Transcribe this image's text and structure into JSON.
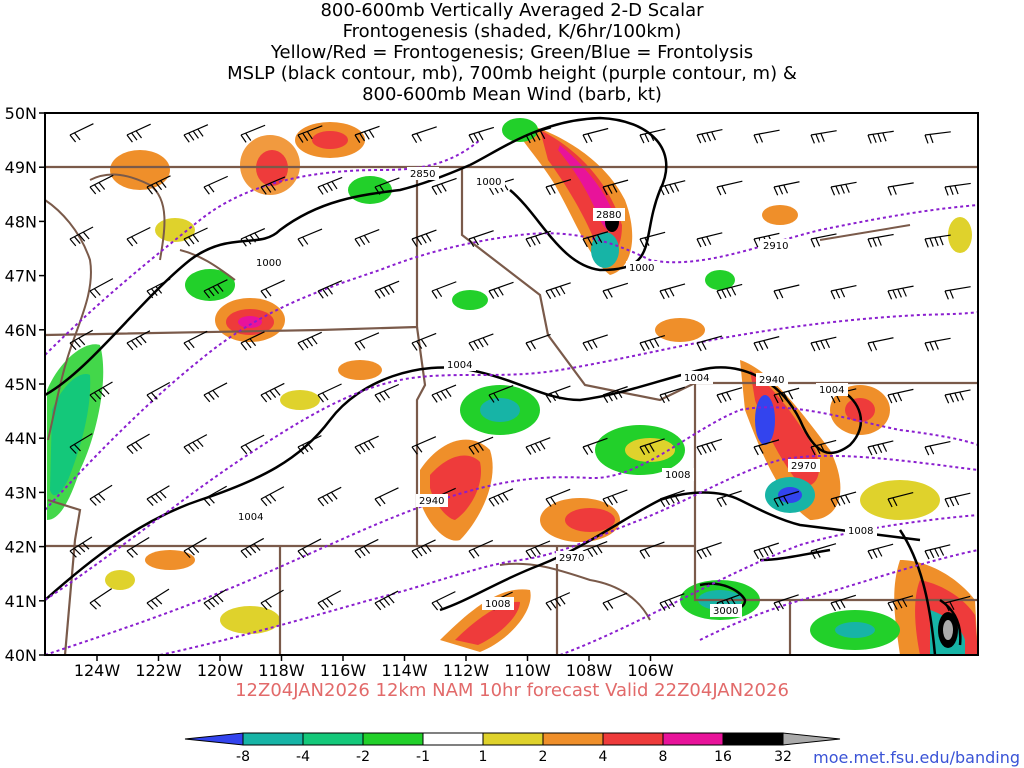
{
  "title_lines": [
    "800-600mb Vertically Averaged 2-D Scalar",
    "Frontogenesis (shaded, K/6hr/100km)",
    "Yellow/Red = Frontogenesis;  Green/Blue = Frontolysis",
    "MSLP (black contour, mb), 700mb height (purple contour, m) &",
    "800-600mb Mean Wind (barb, kt)"
  ],
  "footer": "12Z04JAN2026 12km NAM 10hr forecast Valid 22Z04JAN2026",
  "credit": "moe.met.fsu.edu/banding",
  "lat_labels": [
    "50N",
    "49N",
    "48N",
    "47N",
    "46N",
    "45N",
    "44N",
    "43N",
    "42N",
    "41N",
    "40N"
  ],
  "lon_labels": [
    "124W",
    "122W",
    "120W",
    "118W",
    "116W",
    "114W",
    "112W",
    "110W",
    "108W",
    "106W"
  ],
  "colorbar": {
    "labels": [
      "-8",
      "-4",
      "-2",
      "-1",
      "1",
      "2",
      "4",
      "8",
      "16",
      "32"
    ],
    "colors": [
      "#3344ee",
      "#17b4a6",
      "#14c87a",
      "#22d02a",
      "#ffffff",
      "#dfd22c",
      "#ef8f2a",
      "#ee3b3b",
      "#e8139a",
      "#000000",
      "#aaaaaa"
    ]
  },
  "contour_labels": {
    "mslp": [
      "1000",
      "1000",
      "1000",
      "1004",
      "1004",
      "1004",
      "1004",
      "1008",
      "1008",
      "1008"
    ],
    "height": [
      "2850",
      "2880",
      "2910",
      "2940",
      "2970",
      "2940",
      "2970",
      "3000"
    ]
  },
  "colors": {
    "mslp_contour": "#000000",
    "height_contour": "#8a1ecf",
    "borders": "#7a5a4a"
  }
}
